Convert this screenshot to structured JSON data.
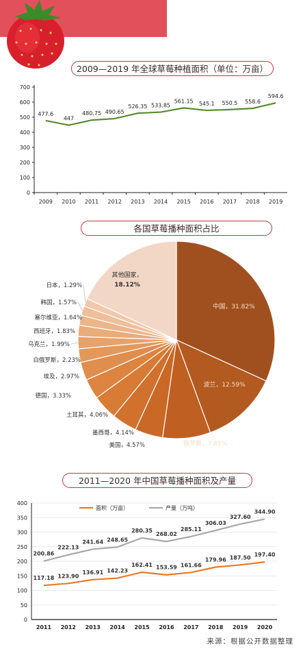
{
  "charts": {
    "c1": {
      "title": "2009—2019 年全球草莓种植面积（单位：万亩）",
      "chart_data": {
        "type": "line",
        "x": [
          "2009",
          "2010",
          "2011",
          "2012",
          "2013",
          "2014",
          "2015",
          "2016",
          "2017",
          "2018",
          "2019"
        ],
        "series": [
          {
            "values": [
              477.6,
              447,
              480.75,
              490.65,
              526.35,
              533.85,
              561.15,
              545.1,
              550.5,
              558.6,
              594.6
            ]
          }
        ],
        "labels": [
          "477.6",
          "447",
          "480.75",
          "490.65",
          "526.35",
          "533.85",
          "561.15",
          "545.1",
          "550.5",
          "558.6",
          "594.6"
        ],
        "yticks": [
          "0",
          "100",
          "200",
          "300",
          "400",
          "500",
          "600",
          "700"
        ],
        "ylim": [
          0,
          700
        ],
        "color": "#5a8a2e",
        "grid": false
      }
    },
    "c2": {
      "title": "各国草莓播种面积占比",
      "chart_data": {
        "type": "pie",
        "slices": [
          {
            "label": "中国，31.82%",
            "value": 31.82,
            "color": "#a0501e"
          },
          {
            "label": "波兰，12.59%",
            "value": 12.59,
            "color": "#b35a20"
          },
          {
            "label": "俄罗斯，7.85%",
            "value": 7.85,
            "color": "#c05f22"
          },
          {
            "label": "美国，4.57%",
            "value": 4.57,
            "color": "#ca6826"
          },
          {
            "label": "墨西哥，4.14%",
            "value": 4.14,
            "color": "#d1712d"
          },
          {
            "label": "土耳其，4.06%",
            "value": 4.06,
            "color": "#d77b35"
          },
          {
            "label": "德国，3.33%",
            "value": 3.33,
            "color": "#dd8440"
          },
          {
            "label": "埃及，2.97%",
            "value": 2.97,
            "color": "#e08e4e"
          },
          {
            "label": "白俄罗斯，2.23%",
            "value": 2.23,
            "color": "#e3985c"
          },
          {
            "label": "乌克兰，1.99%",
            "value": 1.99,
            "color": "#e6a26b"
          },
          {
            "label": "西班牙，1.83%",
            "value": 1.83,
            "color": "#e9ac7b"
          },
          {
            "label": "塞尔维亚，1.64%",
            "value": 1.64,
            "color": "#ecb68b"
          },
          {
            "label": "韩国，1.57%",
            "value": 1.57,
            "color": "#eebf9b"
          },
          {
            "label": "日本，1.29%",
            "value": 1.29,
            "color": "#f1c8ab"
          },
          {
            "label": "其他国家，18.12%",
            "value": 18.12,
            "color": "#f2d6c6"
          }
        ]
      }
    },
    "c3": {
      "title": "2011—2020 年中国草莓播种面积及产量",
      "chart_data": {
        "type": "line",
        "x": [
          "2011",
          "2012",
          "2013",
          "2014",
          "2015",
          "2016",
          "2017",
          "2018",
          "2019",
          "2020"
        ],
        "series": [
          {
            "name": "面积（万亩）",
            "color": "#e87a28",
            "values": [
              117.18,
              123.9,
              136.91,
              142.23,
              162.41,
              153.59,
              161.66,
              179.96,
              187.5,
              197.4
            ],
            "labels": [
              "117.18",
              "123.90",
              "136.91",
              "142.23",
              "162.41",
              "153.59",
              "161.66",
              "179.96",
              "187.50",
              "197.40"
            ]
          },
          {
            "name": "产量（万吨）",
            "color": "#a8a8a8",
            "values": [
              200.86,
              222.13,
              241.64,
              248.65,
              280.35,
              268.02,
              285.11,
              306.03,
              327.6,
              344.9
            ],
            "labels": [
              "200.86",
              "222.13",
              "241.64",
              "248.65",
              "280.35",
              "268.02",
              "285.11",
              "306.03",
              "327.60",
              "344.90"
            ]
          }
        ],
        "yticks": [
          "0",
          "50",
          "100",
          "150",
          "200",
          "250",
          "300",
          "350",
          "400"
        ],
        "ylim": [
          0,
          400
        ],
        "grid": true,
        "legend": "top"
      }
    }
  },
  "source": "来源：根据公开数据整理",
  "decor": {
    "banner_color": "#e2505c",
    "strawberry": "strawberry-icon"
  }
}
